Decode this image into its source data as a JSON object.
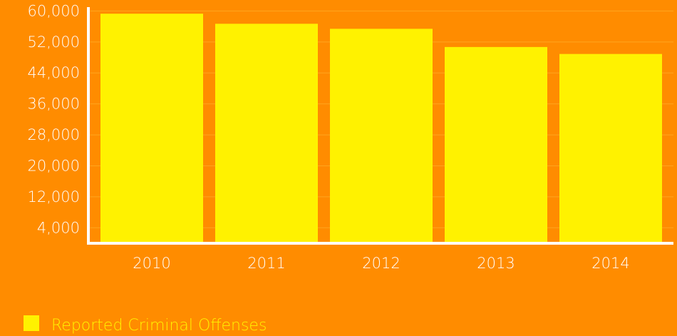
{
  "chart_data": {
    "type": "bar",
    "categories": [
      "2010",
      "2011",
      "2012",
      "2013",
      "2014"
    ],
    "series": [
      {
        "name": "Reported Criminal Offenses",
        "values": [
          59300,
          56700,
          55400,
          50700,
          48900
        ]
      }
    ],
    "y_ticks": [
      "4,000",
      "12,000",
      "20,000",
      "28,000",
      "36,000",
      "44,000",
      "52,000",
      "60,000"
    ],
    "y_tick_values": [
      4000,
      12000,
      20000,
      28000,
      36000,
      44000,
      52000,
      60000
    ],
    "ylim": [
      0,
      61000
    ],
    "grid": true,
    "legend": "bottom-left",
    "title": "",
    "xlabel": "",
    "ylabel": ""
  },
  "colors": {
    "background": "#FF8C00",
    "bar": "#FFF200",
    "axis": "#FFFFFF",
    "grid": "#FFA51F",
    "legend_text": "#FFF200",
    "tick_text": "#FFFFFF"
  }
}
